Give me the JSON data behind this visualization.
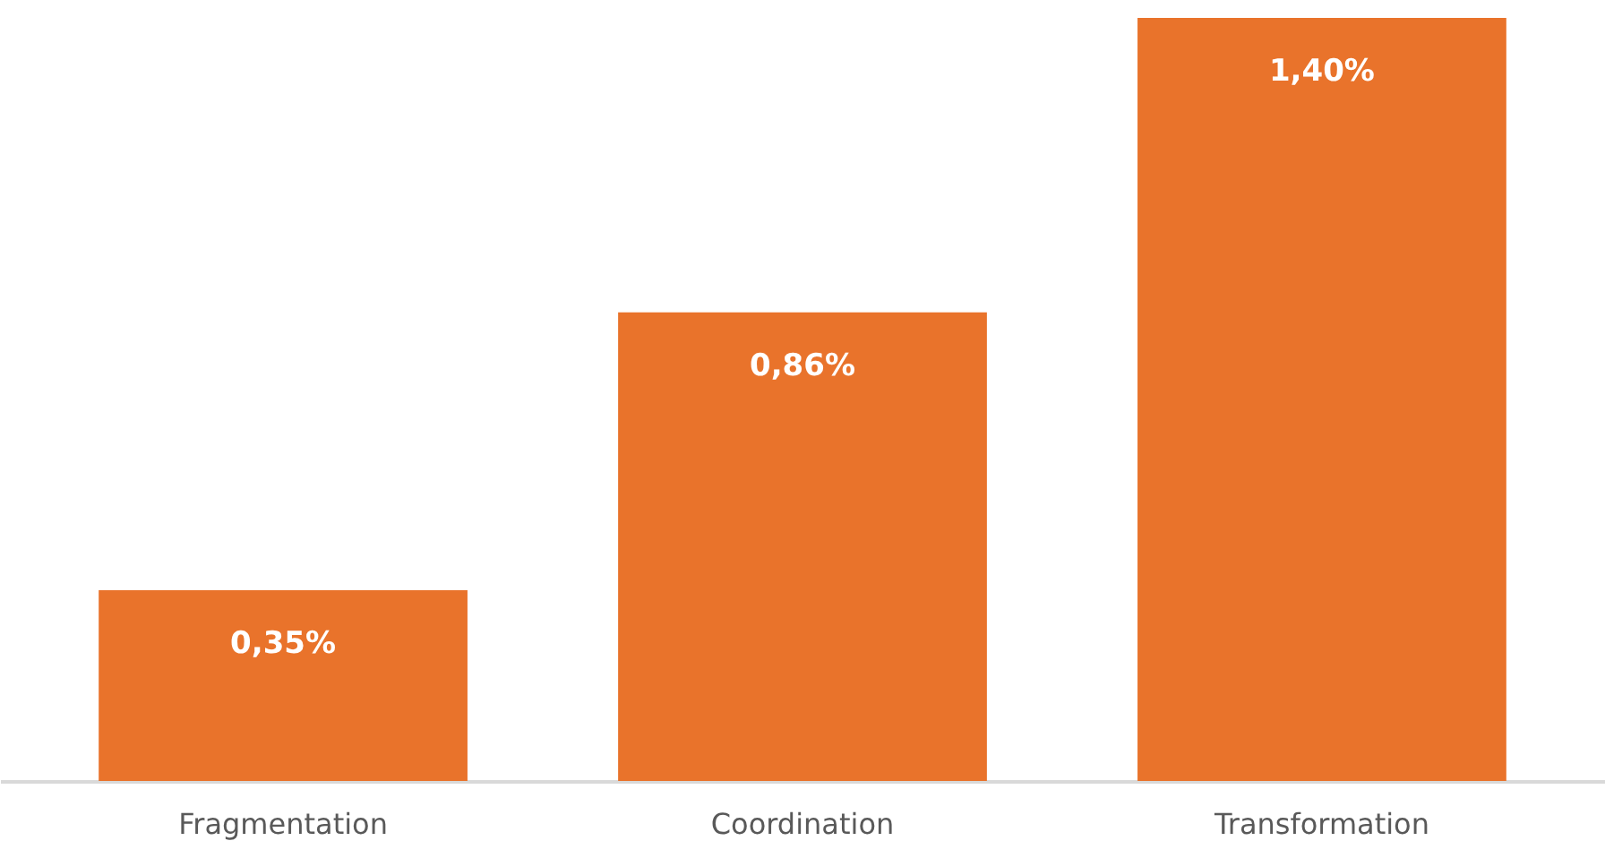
{
  "chart_data": {
    "type": "bar",
    "categories": [
      "Fragmentation",
      "Coordination",
      "Transformation"
    ],
    "values": [
      0.35,
      0.86,
      1.4
    ],
    "value_labels": [
      "0,35%",
      "0,86%",
      "1,40%"
    ],
    "color": "#e9732b"
  }
}
